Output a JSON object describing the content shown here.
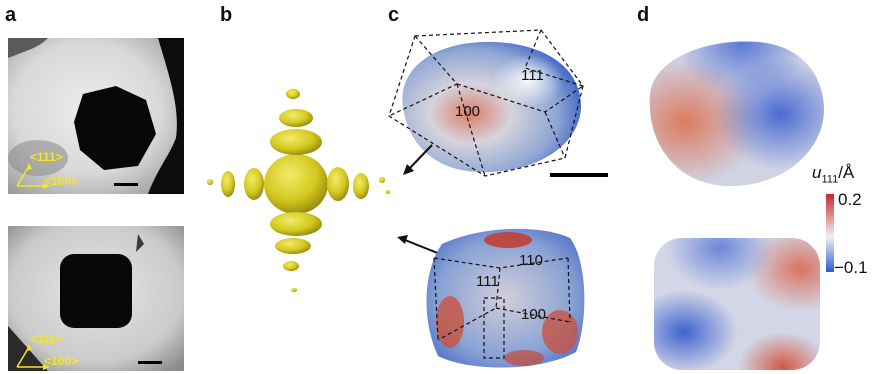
{
  "panels": {
    "a": {
      "letter": "a",
      "top_axis": {
        "label_111": "<111>",
        "label_100": "<100>"
      },
      "bottom_axis": {
        "label_111": "<111>",
        "label_100": "<100>"
      }
    },
    "b": {
      "letter": "b"
    },
    "c": {
      "letter": "c",
      "top_facets": {
        "f111": "111",
        "f100": "100"
      },
      "bottom_facets": {
        "f110": "110",
        "f111": "111",
        "f100": "100"
      }
    },
    "d": {
      "letter": "d"
    }
  },
  "colorbar": {
    "variable": "u",
    "subscript": "111",
    "unit": "/Å",
    "max_label": "0.2",
    "min_label": "−0.1",
    "colors": {
      "high": "#c62828",
      "mid": "#f1f1f1",
      "low": "#2d5bd6"
    }
  },
  "colors": {
    "isosurface": "#d8d020",
    "hkl_text": "#f5e626"
  }
}
